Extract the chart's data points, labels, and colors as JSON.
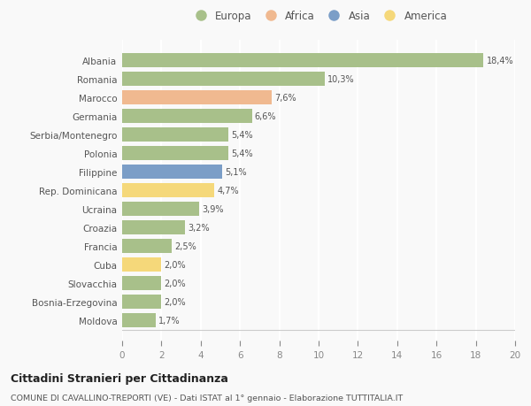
{
  "categories": [
    "Albania",
    "Romania",
    "Marocco",
    "Germania",
    "Serbia/Montenegro",
    "Polonia",
    "Filippine",
    "Rep. Dominicana",
    "Ucraina",
    "Croazia",
    "Francia",
    "Cuba",
    "Slovacchia",
    "Bosnia-Erzegovina",
    "Moldova"
  ],
  "values": [
    18.4,
    10.3,
    7.6,
    6.6,
    5.4,
    5.4,
    5.1,
    4.7,
    3.9,
    3.2,
    2.5,
    2.0,
    2.0,
    2.0,
    1.7
  ],
  "labels": [
    "18,4%",
    "10,3%",
    "7,6%",
    "6,6%",
    "5,4%",
    "5,4%",
    "5,1%",
    "4,7%",
    "3,9%",
    "3,2%",
    "2,5%",
    "2,0%",
    "2,0%",
    "2,0%",
    "1,7%"
  ],
  "colors": [
    "#a8c08a",
    "#a8c08a",
    "#f0b990",
    "#a8c08a",
    "#a8c08a",
    "#a8c08a",
    "#7b9ec7",
    "#f5d87a",
    "#a8c08a",
    "#a8c08a",
    "#a8c08a",
    "#f5d87a",
    "#a8c08a",
    "#a8c08a",
    "#a8c08a"
  ],
  "legend": [
    {
      "label": "Europa",
      "color": "#a8c08a"
    },
    {
      "label": "Africa",
      "color": "#f0b990"
    },
    {
      "label": "Asia",
      "color": "#7b9ec7"
    },
    {
      "label": "America",
      "color": "#f5d87a"
    }
  ],
  "xlim": [
    0,
    20
  ],
  "xticks": [
    0,
    2,
    4,
    6,
    8,
    10,
    12,
    14,
    16,
    18,
    20
  ],
  "title1": "Cittadini Stranieri per Cittadinanza",
  "title2": "COMUNE DI CAVALLINO-TREPORTI (VE) - Dati ISTAT al 1° gennaio - Elaborazione TUTTITALIA.IT",
  "background_color": "#f9f9f9",
  "grid_color": "#ffffff",
  "bar_height": 0.75
}
